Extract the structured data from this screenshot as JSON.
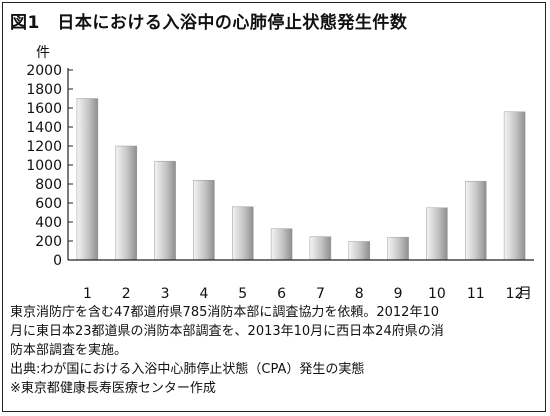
{
  "title": "図1　日本における入浴中の心肺停止状態発生件数",
  "notes": {
    "line1": "東京消防庁を含む47都道府県785消防本部に調査協力を依頼。2012年10",
    "line2": "月に東日本23都道県の消防本部調査を、2013年10月に西日本24府県の消",
    "line3": "防本部調査を実施。",
    "source": "出典:わが国における入浴中心肺停止状態（CPA）発生の実態",
    "credit": "※東京都健康長寿医療センター作成"
  },
  "colors": {
    "bar_light": "#f4f4f4",
    "bar_dark": "#8e8e8e",
    "axis": "#222222"
  },
  "chart_data": {
    "type": "bar",
    "title": "図1　日本における入浴中の心肺停止状態発生件数",
    "xlabel": "月",
    "ylabel": "件",
    "categories": [
      "1",
      "2",
      "3",
      "4",
      "5",
      "6",
      "7",
      "8",
      "9",
      "10",
      "11",
      "12"
    ],
    "values": [
      1700,
      1200,
      1040,
      840,
      560,
      330,
      245,
      195,
      240,
      550,
      830,
      1560
    ],
    "ylim": [
      0,
      2000
    ],
    "yticks": [
      "0",
      "200",
      "400",
      "600",
      "800",
      "1000",
      "1200",
      "1400",
      "1600",
      "1800",
      "2000"
    ],
    "grid": false,
    "legend": "none"
  }
}
